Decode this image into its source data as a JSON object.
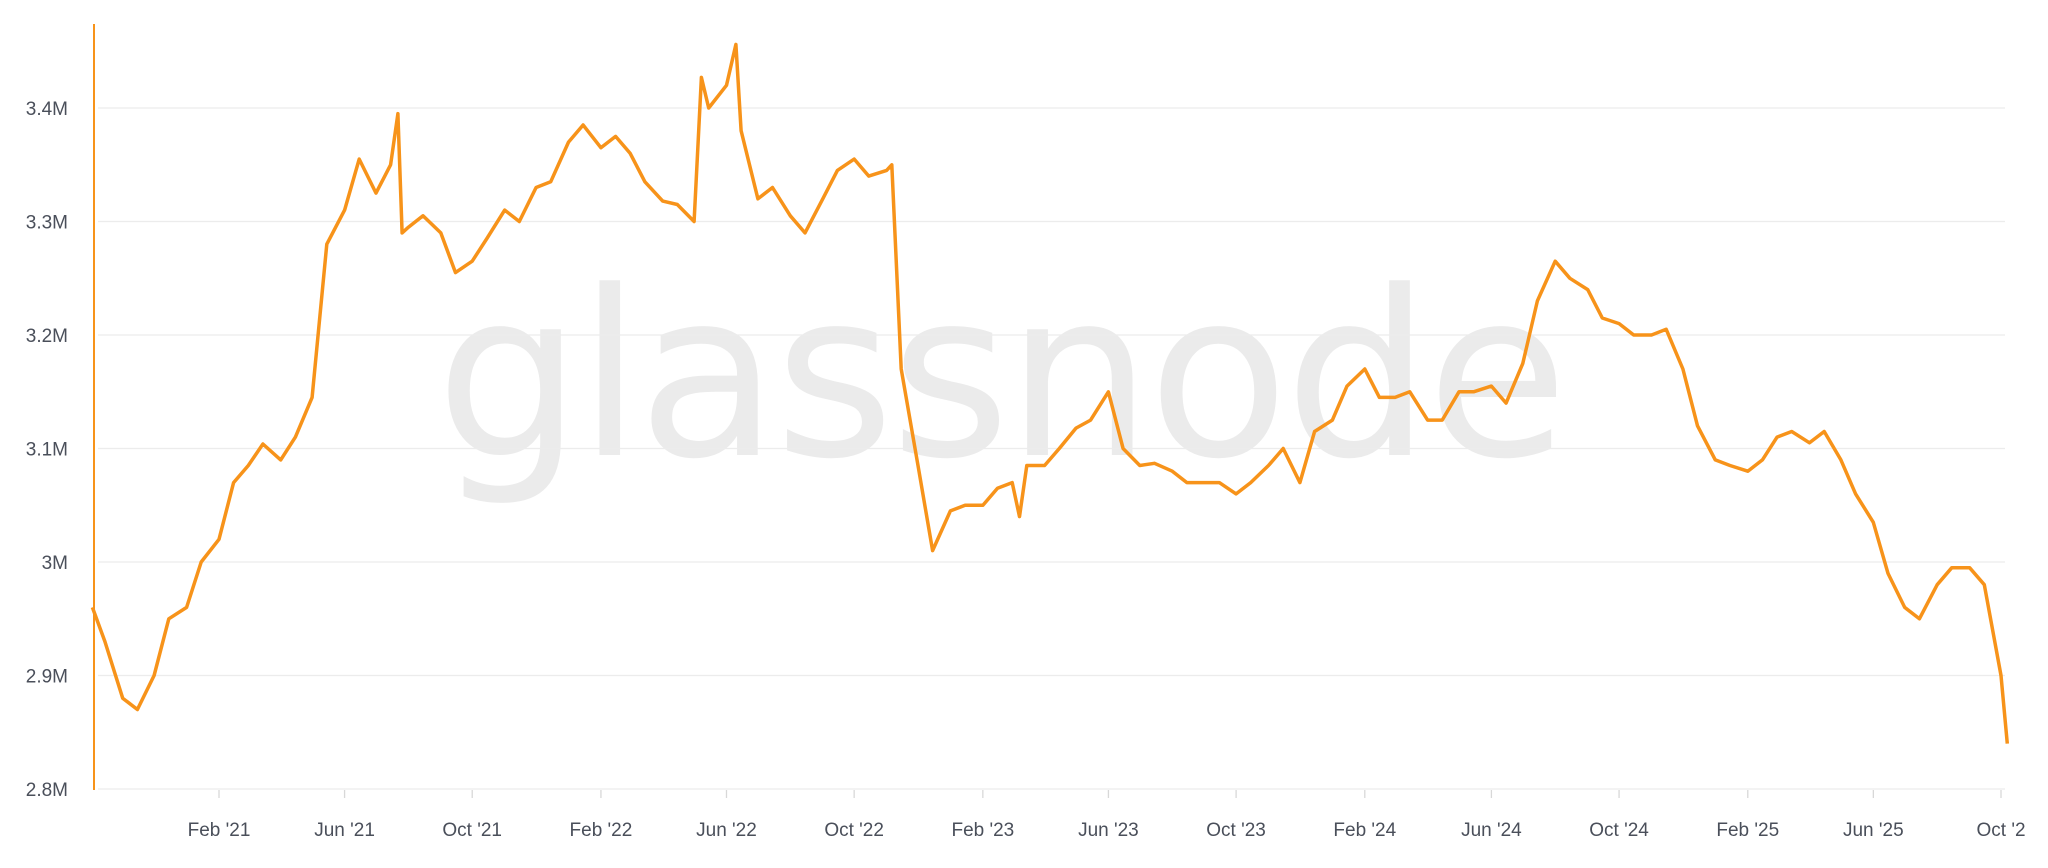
{
  "watermark": "glassnode",
  "chart_data": {
    "type": "line",
    "title": "",
    "xlabel": "",
    "ylabel": "",
    "ylim": [
      2800000,
      3480000
    ],
    "y_ticks": [
      {
        "value": 2800000,
        "label": "2.8M"
      },
      {
        "value": 2900000,
        "label": "2.9M"
      },
      {
        "value": 3000000,
        "label": "3M"
      },
      {
        "value": 3100000,
        "label": "3.1M"
      },
      {
        "value": 3200000,
        "label": "3.2M"
      },
      {
        "value": 3300000,
        "label": "3.3M"
      },
      {
        "value": 3400000,
        "label": "3.4M"
      }
    ],
    "x_ticks": [
      {
        "date": "2021-02-01",
        "label": "Feb '21"
      },
      {
        "date": "2021-06-01",
        "label": "Jun '21"
      },
      {
        "date": "2021-10-01",
        "label": "Oct '21"
      },
      {
        "date": "2022-02-01",
        "label": "Feb '22"
      },
      {
        "date": "2022-06-01",
        "label": "Jun '22"
      },
      {
        "date": "2022-10-01",
        "label": "Oct '22"
      },
      {
        "date": "2023-02-01",
        "label": "Feb '23"
      },
      {
        "date": "2023-06-01",
        "label": "Jun '23"
      },
      {
        "date": "2023-10-01",
        "label": "Oct '23"
      },
      {
        "date": "2024-02-01",
        "label": "Feb '24"
      },
      {
        "date": "2024-06-01",
        "label": "Jun '24"
      },
      {
        "date": "2024-10-01",
        "label": "Oct '24"
      },
      {
        "date": "2025-02-01",
        "label": "Feb '25"
      },
      {
        "date": "2025-06-01",
        "label": "Jun '25"
      },
      {
        "date": "2025-10-01",
        "label": "Oct '2"
      }
    ],
    "grid": "horizontal",
    "legend": "none",
    "line_color": "#f7931a",
    "series": [
      {
        "points": [
          [
            "2020-10-03",
            2960000
          ],
          [
            "2020-10-15",
            2930000
          ],
          [
            "2020-11-01",
            2880000
          ],
          [
            "2020-11-15",
            2870000
          ],
          [
            "2020-12-01",
            2900000
          ],
          [
            "2020-12-15",
            2950000
          ],
          [
            "2021-01-01",
            2960000
          ],
          [
            "2021-01-15",
            3000000
          ],
          [
            "2021-02-01",
            3020000
          ],
          [
            "2021-02-15",
            3070000
          ],
          [
            "2021-03-01",
            3085000
          ],
          [
            "2021-03-15",
            3104000
          ],
          [
            "2021-04-01",
            3090000
          ],
          [
            "2021-04-15",
            3110000
          ],
          [
            "2021-05-01",
            3145000
          ],
          [
            "2021-05-15",
            3280000
          ],
          [
            "2021-06-01",
            3310000
          ],
          [
            "2021-06-15",
            3355000
          ],
          [
            "2021-07-01",
            3325000
          ],
          [
            "2021-07-15",
            3350000
          ],
          [
            "2021-07-22",
            3395000
          ],
          [
            "2021-07-26",
            3290000
          ],
          [
            "2021-08-01",
            3295000
          ],
          [
            "2021-08-15",
            3305000
          ],
          [
            "2021-09-01",
            3290000
          ],
          [
            "2021-09-15",
            3255000
          ],
          [
            "2021-10-01",
            3265000
          ],
          [
            "2021-10-15",
            3285000
          ],
          [
            "2021-11-01",
            3310000
          ],
          [
            "2021-11-15",
            3300000
          ],
          [
            "2021-12-01",
            3330000
          ],
          [
            "2021-12-15",
            3335000
          ],
          [
            "2022-01-01",
            3370000
          ],
          [
            "2022-01-15",
            3385000
          ],
          [
            "2022-02-01",
            3365000
          ],
          [
            "2022-02-15",
            3375000
          ],
          [
            "2022-03-01",
            3360000
          ],
          [
            "2022-03-15",
            3335000
          ],
          [
            "2022-04-01",
            3318000
          ],
          [
            "2022-04-15",
            3315000
          ],
          [
            "2022-05-01",
            3300000
          ],
          [
            "2022-05-08",
            3427000
          ],
          [
            "2022-05-15",
            3400000
          ],
          [
            "2022-06-01",
            3420000
          ],
          [
            "2022-06-10",
            3456000
          ],
          [
            "2022-06-15",
            3380000
          ],
          [
            "2022-07-01",
            3320000
          ],
          [
            "2022-07-15",
            3330000
          ],
          [
            "2022-08-01",
            3305000
          ],
          [
            "2022-08-15",
            3290000
          ],
          [
            "2022-09-01",
            3320000
          ],
          [
            "2022-09-15",
            3345000
          ],
          [
            "2022-10-01",
            3355000
          ],
          [
            "2022-10-15",
            3340000
          ],
          [
            "2022-11-01",
            3345000
          ],
          [
            "2022-11-06",
            3350000
          ],
          [
            "2022-11-15",
            3170000
          ],
          [
            "2022-12-01",
            3085000
          ],
          [
            "2022-12-15",
            3010000
          ],
          [
            "2023-01-01",
            3045000
          ],
          [
            "2023-01-15",
            3050000
          ],
          [
            "2023-02-01",
            3050000
          ],
          [
            "2023-02-15",
            3065000
          ],
          [
            "2023-03-01",
            3070000
          ],
          [
            "2023-03-08",
            3040000
          ],
          [
            "2023-03-15",
            3085000
          ],
          [
            "2023-04-01",
            3085000
          ],
          [
            "2023-04-15",
            3100000
          ],
          [
            "2023-05-01",
            3118000
          ],
          [
            "2023-05-15",
            3125000
          ],
          [
            "2023-06-01",
            3150000
          ],
          [
            "2023-06-15",
            3100000
          ],
          [
            "2023-07-01",
            3085000
          ],
          [
            "2023-07-15",
            3087000
          ],
          [
            "2023-08-01",
            3080000
          ],
          [
            "2023-08-15",
            3070000
          ],
          [
            "2023-09-01",
            3070000
          ],
          [
            "2023-09-15",
            3070000
          ],
          [
            "2023-10-01",
            3060000
          ],
          [
            "2023-10-15",
            3070000
          ],
          [
            "2023-11-01",
            3085000
          ],
          [
            "2023-11-15",
            3100000
          ],
          [
            "2023-12-01",
            3070000
          ],
          [
            "2023-12-15",
            3115000
          ],
          [
            "2024-01-01",
            3125000
          ],
          [
            "2024-01-15",
            3155000
          ],
          [
            "2024-02-01",
            3170000
          ],
          [
            "2024-02-15",
            3145000
          ],
          [
            "2024-03-01",
            3145000
          ],
          [
            "2024-03-15",
            3150000
          ],
          [
            "2024-04-01",
            3125000
          ],
          [
            "2024-04-15",
            3125000
          ],
          [
            "2024-05-01",
            3150000
          ],
          [
            "2024-05-15",
            3150000
          ],
          [
            "2024-06-01",
            3155000
          ],
          [
            "2024-06-15",
            3140000
          ],
          [
            "2024-07-01",
            3175000
          ],
          [
            "2024-07-15",
            3230000
          ],
          [
            "2024-08-01",
            3265000
          ],
          [
            "2024-08-15",
            3250000
          ],
          [
            "2024-09-01",
            3240000
          ],
          [
            "2024-09-15",
            3215000
          ],
          [
            "2024-10-01",
            3210000
          ],
          [
            "2024-10-15",
            3200000
          ],
          [
            "2024-11-01",
            3200000
          ],
          [
            "2024-11-15",
            3205000
          ],
          [
            "2024-12-01",
            3170000
          ],
          [
            "2024-12-15",
            3120000
          ],
          [
            "2025-01-01",
            3090000
          ],
          [
            "2025-01-15",
            3085000
          ],
          [
            "2025-02-01",
            3080000
          ],
          [
            "2025-02-15",
            3090000
          ],
          [
            "2025-03-01",
            3110000
          ],
          [
            "2025-03-15",
            3115000
          ],
          [
            "2025-04-01",
            3105000
          ],
          [
            "2025-04-15",
            3115000
          ],
          [
            "2025-05-01",
            3090000
          ],
          [
            "2025-05-15",
            3060000
          ],
          [
            "2025-06-01",
            3035000
          ],
          [
            "2025-06-15",
            2990000
          ],
          [
            "2025-07-01",
            2960000
          ],
          [
            "2025-07-15",
            2950000
          ],
          [
            "2025-08-01",
            2980000
          ],
          [
            "2025-08-15",
            2995000
          ],
          [
            "2025-09-01",
            2995000
          ],
          [
            "2025-09-15",
            2980000
          ],
          [
            "2025-10-01",
            2900000
          ],
          [
            "2025-10-07",
            2840000
          ]
        ]
      }
    ]
  }
}
